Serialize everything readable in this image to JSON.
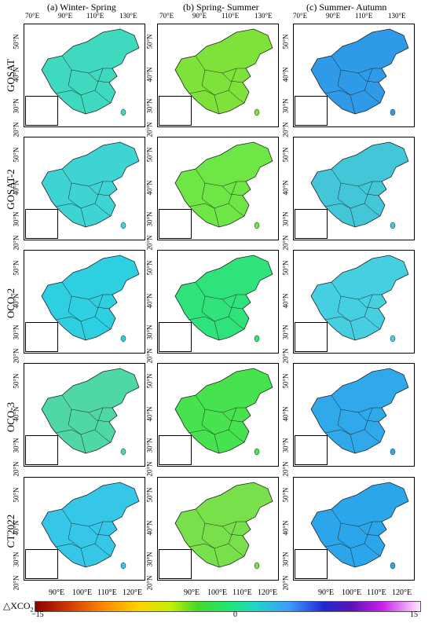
{
  "columns": [
    {
      "title": "(a) Winter- Spring"
    },
    {
      "title": "(b) Spring- Summer"
    },
    {
      "title": "(c) Summer- Autumn"
    }
  ],
  "rows": [
    {
      "label": "GOSAT"
    },
    {
      "label": "GOSAT-2"
    },
    {
      "label": "OCO-2"
    },
    {
      "label": "OCO-3"
    },
    {
      "label": "CT2022"
    }
  ],
  "top_ticks": [
    "70°E",
    "90°E",
    "110°E",
    "130°E"
  ],
  "bottom_ticks": [
    "90°E",
    "100°E",
    "110°E",
    "120°E"
  ],
  "lat_ticks": [
    "50°N",
    "40°N",
    "30°N",
    "20°N"
  ],
  "colorbar": {
    "title": "△XCO",
    "subscript": "2",
    "min_label": "−15",
    "mid_label": "0",
    "max_label": "15"
  },
  "colors": {
    "neg_strong": "#8b0000",
    "neg_mid": "#ff8c00",
    "neg_low": "#c6f00a",
    "zero": "#1ee66e",
    "pos_low": "#1ed7c8",
    "pos_mid": "#1e28d2",
    "pos_strong": "#c81ee6"
  },
  "panels": [
    [
      "#3fd9c0",
      "#3fd4d4",
      "#2ecfe0",
      "#4fd7a5",
      "#35c6e8"
    ],
    [
      "#7fe23a",
      "#6ee645",
      "#2fe27a",
      "#46e34f",
      "#77e04a"
    ],
    [
      "#2f9ae8",
      "#43c6d8",
      "#46cfe0",
      "#2fa9ea",
      "#2ca6ea"
    ]
  ]
}
